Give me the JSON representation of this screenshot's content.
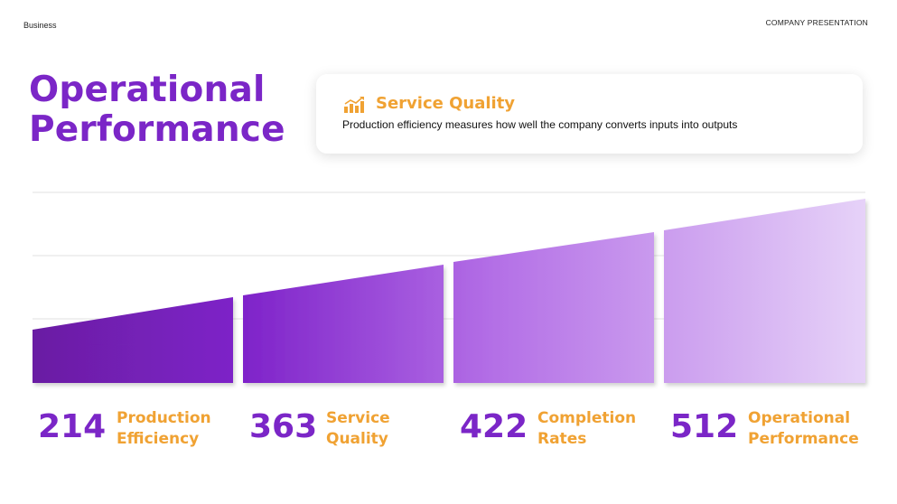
{
  "header": {
    "left_label": "Business",
    "right_label": "COMPANY PRESENTATION"
  },
  "title": {
    "line1": "Operational",
    "line2": "Performance"
  },
  "card": {
    "icon": "growth-chart-icon",
    "heading": "Service Quality",
    "text": "Production efficiency measures how well the company converts inputs into outputs"
  },
  "colors": {
    "purple": "#7b26c7",
    "orange": "#f0a233"
  },
  "stats": [
    {
      "value": "214",
      "label_line1": "Production",
      "label_line2": "Efficiency"
    },
    {
      "value": "363",
      "label_line1": "Service",
      "label_line2": "Quality"
    },
    {
      "value": "422",
      "label_line1": "Completion",
      "label_line2": "Rates"
    },
    {
      "value": "512",
      "label_line1": "Operational",
      "label_line2": "Performance"
    }
  ]
}
